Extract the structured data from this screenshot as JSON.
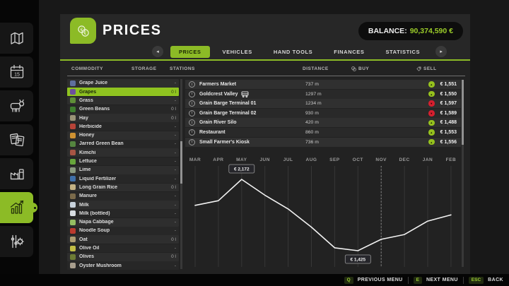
{
  "header": {
    "title": "PRICES",
    "balance_label": "BALANCE:",
    "balance_value": "90,374,590 €",
    "accent_color": "#8cbb26"
  },
  "sidebar": {
    "items": [
      {
        "name": "map",
        "active": false
      },
      {
        "name": "calendar",
        "active": false,
        "day": "15"
      },
      {
        "name": "animals",
        "active": false
      },
      {
        "name": "contracts",
        "active": false
      },
      {
        "name": "production",
        "active": false
      },
      {
        "name": "statistics",
        "active": true
      },
      {
        "name": "settings",
        "active": false
      }
    ]
  },
  "tabs": {
    "items": [
      {
        "label": "PRICES",
        "active": true
      },
      {
        "label": "VEHICLES",
        "active": false
      },
      {
        "label": "HAND TOOLS",
        "active": false
      },
      {
        "label": "FINANCES",
        "active": false
      },
      {
        "label": "STATISTICS",
        "active": false
      }
    ],
    "left_arrow": "◂",
    "right_arrow": "▸"
  },
  "table": {
    "headers": {
      "commodity": "COMMODITY",
      "storage": "STORAGE",
      "stations": "STATIONS",
      "distance": "DISTANCE",
      "buy": "BUY",
      "sell": "SELL"
    }
  },
  "commodities": [
    {
      "name": "Grape Juice",
      "storage": "-",
      "icon": "grape-juice-icon",
      "color": "#5f6f9e",
      "selected": false
    },
    {
      "name": "Grapes",
      "storage": "0 l",
      "icon": "grapes-icon",
      "color": "#6d4f9e",
      "selected": true
    },
    {
      "name": "Grass",
      "storage": "-",
      "icon": "grass-icon",
      "color": "#5f8f38",
      "selected": false
    },
    {
      "name": "Green Beans",
      "storage": "0 l",
      "icon": "green-beans-icon",
      "color": "#3f7f2f",
      "selected": false
    },
    {
      "name": "Hay",
      "storage": "0 l",
      "icon": "hay-icon",
      "color": "#9a9478",
      "selected": false
    },
    {
      "name": "Herbicide",
      "storage": "-",
      "icon": "herbicide-icon",
      "color": "#b74438",
      "selected": false
    },
    {
      "name": "Honey",
      "storage": "-",
      "icon": "honey-icon",
      "color": "#cf9232",
      "selected": false
    },
    {
      "name": "Jarred Green Bean",
      "storage": "-",
      "icon": "jarred-green-bean-icon",
      "color": "#55853f",
      "selected": false
    },
    {
      "name": "Kimchi",
      "storage": "-",
      "icon": "kimchi-icon",
      "color": "#a85544",
      "selected": false
    },
    {
      "name": "Lettuce",
      "storage": "-",
      "icon": "lettuce-icon",
      "color": "#67a63b",
      "selected": false
    },
    {
      "name": "Lime",
      "storage": "-",
      "icon": "lime-icon",
      "color": "#8a9a7f",
      "selected": false
    },
    {
      "name": "Liquid Fertilizer",
      "storage": "-",
      "icon": "liquid-fertilizer-icon",
      "color": "#3f6fa8",
      "selected": false
    },
    {
      "name": "Long Grain Rice",
      "storage": "0 l",
      "icon": "long-grain-rice-icon",
      "color": "#c4b284",
      "selected": false
    },
    {
      "name": "Manure",
      "storage": "-",
      "icon": "manure-icon",
      "color": "#7a6a4a",
      "selected": false
    },
    {
      "name": "Milk",
      "storage": "-",
      "icon": "milk-icon",
      "color": "#c8d2dc",
      "selected": false
    },
    {
      "name": "Milk (bottled)",
      "storage": "-",
      "icon": "milk-bottled-icon",
      "color": "#d8dde2",
      "selected": false
    },
    {
      "name": "Napa Cabbage",
      "storage": "-",
      "icon": "napa-cabbage-icon",
      "color": "#95bd62",
      "selected": false
    },
    {
      "name": "Noodle Soup",
      "storage": "-",
      "icon": "noodle-soup-icon",
      "color": "#bb3a2e",
      "selected": false
    },
    {
      "name": "Oat",
      "storage": "0 l",
      "icon": "oat-icon",
      "color": "#ad9d72",
      "selected": false
    },
    {
      "name": "Olive Oil",
      "storage": "-",
      "icon": "olive-oil-icon",
      "color": "#c2bd45",
      "selected": false
    },
    {
      "name": "Olives",
      "storage": "0 l",
      "icon": "olives-icon",
      "color": "#6d7c35",
      "selected": false
    },
    {
      "name": "Oyster Mushroom",
      "storage": "-",
      "icon": "oyster-mushroom-icon",
      "color": "#a89e8e",
      "selected": false
    }
  ],
  "stations": [
    {
      "name": "Farmers Market",
      "train": false,
      "distance": "737 m",
      "trend": "up",
      "price": "€ 1,551"
    },
    {
      "name": "Goldcrest Valley",
      "train": true,
      "distance": "1297 m",
      "trend": "up",
      "price": "€ 1,550"
    },
    {
      "name": "Grain Barge Terminal 01",
      "train": false,
      "distance": "1234 m",
      "trend": "down",
      "price": "€ 1,597"
    },
    {
      "name": "Grain Barge Terminal 02",
      "train": false,
      "distance": "930 m",
      "trend": "down",
      "price": "€ 1,589"
    },
    {
      "name": "Grain River Silo",
      "train": false,
      "distance": "420 m",
      "trend": "up",
      "price": "€ 1,488"
    },
    {
      "name": "Restaurant",
      "train": false,
      "distance": "860 m",
      "trend": "up",
      "price": "€ 1,553"
    },
    {
      "name": "Small Farmer's Kiosk",
      "train": false,
      "distance": "736 m",
      "trend": "up",
      "price": "€ 1,556"
    }
  ],
  "trend_colors": {
    "up": "#96c21e",
    "down": "#d61f2f"
  },
  "chart_data": {
    "type": "line",
    "categories": [
      "MAR",
      "APR",
      "MAY",
      "JUN",
      "JUL",
      "AUG",
      "SEP",
      "OCT",
      "NOV",
      "DEC",
      "JAN",
      "FEB"
    ],
    "values": [
      1900,
      1949,
      2172,
      2006,
      1862,
      1672,
      1455,
      1425,
      1544,
      1594,
      1735,
      1800
    ],
    "ylim": [
      1350,
      2300
    ],
    "annotations": [
      {
        "category": "MAY",
        "label": "€ 2,172",
        "value": 2172
      },
      {
        "category": "OCT",
        "label": "€ 1,425",
        "value": 1425
      }
    ],
    "current_marker_category": "NOV",
    "grid": "vertical",
    "line_color": "#f2f2f2"
  },
  "footer": {
    "items": [
      {
        "key": "Q",
        "label": "PREVIOUS MENU"
      },
      {
        "key": "E",
        "label": "NEXT MENU"
      },
      {
        "key": "ESC",
        "label": "BACK"
      }
    ]
  }
}
